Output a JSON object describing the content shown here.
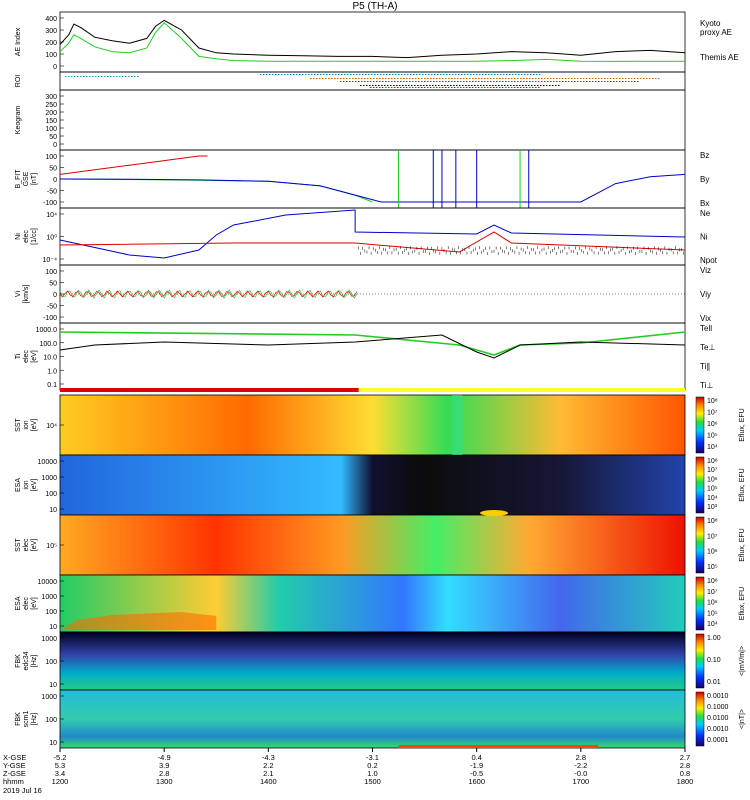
{
  "chart_data": {
    "type": "line",
    "title": "P5 (TH-A)",
    "date_label": "2019 Jul 16",
    "time_axis": {
      "row_labels": [
        "X-GSE",
        "Y-GSE",
        "Z-GSE",
        "hhmm"
      ],
      "ticks": [
        {
          "x": "-5.2",
          "y": "5.3",
          "z": "3.4",
          "t": "1200"
        },
        {
          "x": "-4.9",
          "y": "3.9",
          "z": "2.8",
          "t": "1300"
        },
        {
          "x": "-4.3",
          "y": "2.2",
          "z": "2.1",
          "t": "1400"
        },
        {
          "x": "-3.1",
          "y": "0.2",
          "z": "1.0",
          "t": "1500"
        },
        {
          "x": "0.4",
          "y": "-1.9",
          "z": "-0.5",
          "t": "1600"
        },
        {
          "x": "2.8",
          "y": "-2.2",
          "z": "-0.0",
          "t": "1700"
        },
        {
          "x": "2.7",
          "y": "2.8",
          "z": "0.8",
          "t": "1800"
        }
      ]
    },
    "panels": [
      {
        "name": "AE",
        "ylabel": [
          "AE Index"
        ],
        "yticks": [
          "400",
          "300",
          "200",
          "100",
          "0"
        ],
        "ylim": [
          0,
          400
        ],
        "legend": [
          "Kyoto",
          "proxy AE",
          "Themis AE"
        ],
        "series": [
          {
            "name": "Kyoto proxy AE",
            "color": "#22cc22",
            "t": [
              0,
              5,
              8,
              12,
              20,
              30,
              40,
              50,
              55,
              60,
              70,
              80,
              90,
              100,
              120,
              140,
              160,
              180,
              200,
              220,
              240,
              260,
              280,
              300,
              320,
              340,
              360
            ],
            "values": [
              120,
              190,
              260,
              230,
              160,
              120,
              110,
              150,
              280,
              360,
              230,
              80,
              60,
              45,
              40,
              40,
              40,
              40,
              40,
              40,
              40,
              45,
              55,
              40,
              38,
              40,
              40
            ]
          },
          {
            "name": "Themis AE",
            "color": "#000000",
            "t": [
              0,
              5,
              8,
              12,
              20,
              30,
              40,
              50,
              55,
              60,
              70,
              80,
              90,
              100,
              120,
              140,
              160,
              180,
              200,
              220,
              240,
              260,
              280,
              300,
              320,
              340,
              360
            ],
            "values": [
              180,
              260,
              350,
              320,
              240,
              210,
              190,
              230,
              330,
              380,
              300,
              150,
              110,
              100,
              90,
              85,
              80,
              80,
              70,
              90,
              100,
              120,
              110,
              90,
              120,
              130,
              110
            ]
          }
        ]
      },
      {
        "name": "ROI",
        "ylabel": [
          "ROI"
        ]
      },
      {
        "name": "Kp",
        "ylabel": [
          "Keogram"
        ],
        "yticks": [
          "300",
          "250",
          "200",
          "150",
          "100",
          "50",
          "0"
        ]
      },
      {
        "name": "B_FIT",
        "ylabel": [
          "B_FIT",
          "GSE",
          "[nT]"
        ],
        "yticks": [
          "100",
          "50",
          "0",
          "-50",
          "-100"
        ],
        "legend": [
          "Bz",
          "By",
          "Bx"
        ],
        "series": [
          {
            "name": "Bz",
            "color": "#dd0000",
            "t": [
              0,
              20,
              40,
              60,
              80,
              85
            ],
            "values": [
              20,
              40,
              60,
              80,
              100,
              100
            ]
          },
          {
            "name": "By",
            "color": "#22cc22",
            "t": [
              0,
              40,
              80,
              120,
              150,
              170,
              180
            ],
            "values": [
              0,
              -2,
              -5,
              -10,
              -30,
              -70,
              -100
            ]
          },
          {
            "name": "Bx",
            "color": "#0000cc",
            "t": [
              0,
              40,
              80,
              120,
              150,
              170,
              185,
              300,
              320,
              340,
              360
            ],
            "values": [
              0,
              -1,
              -4,
              -10,
              -30,
              -70,
              -100,
              -100,
              -20,
              10,
              20
            ]
          }
        ]
      },
      {
        "name": "Ni",
        "ylabel": [
          "Ni",
          "elec",
          "[1/cc]"
        ],
        "yticks": [
          "10^4",
          "10^0",
          "10^-4"
        ],
        "legend": [
          "Ne",
          "Ni",
          "Npot"
        ]
      },
      {
        "name": "Vi",
        "ylabel": [
          "Vi",
          "[km/s]"
        ],
        "yticks": [
          "100",
          "50",
          "0",
          "-50",
          "-100"
        ],
        "legend": [
          "Viz",
          "Viy",
          "Vix"
        ]
      },
      {
        "name": "Ti",
        "ylabel": [
          "Ti",
          "elec",
          "[eV]"
        ],
        "yticks": [
          "1000.0",
          "100.0",
          "10.0",
          "1.0",
          "0.1"
        ],
        "legend": [
          "Tell",
          "Te⊥",
          "Ti∥",
          "Ti⊥"
        ]
      },
      {
        "name": "SST ion",
        "ylabel": [
          "SST",
          "ion",
          "[eV]"
        ],
        "yticks": [
          "10^4"
        ],
        "colorbar": [
          "Eflux, EFU",
          "10^8",
          "10^7",
          "10^6",
          "10^5",
          "10^4"
        ]
      },
      {
        "name": "ESA ion",
        "ylabel": [
          "ESA",
          "ion",
          "[eV]"
        ],
        "yticks": [
          "10000",
          "1000",
          "100",
          "10"
        ],
        "colorbar": [
          "Eflux, EFU",
          "10^8",
          "10^7",
          "10^6",
          "10^5",
          "10^4",
          "10^3"
        ]
      },
      {
        "name": "SST elec",
        "ylabel": [
          "SST",
          "elec",
          "[eV]"
        ],
        "yticks": [
          "10^5"
        ],
        "colorbar": [
          "Eflux, EFU",
          "10^8",
          "10^7",
          "10^6",
          "10^5"
        ]
      },
      {
        "name": "ESA elec",
        "ylabel": [
          "ESA",
          "elec",
          "[eV]"
        ],
        "yticks": [
          "10000",
          "1000",
          "100",
          "10"
        ],
        "colorbar": [
          "Eflux, EFU",
          "10^8",
          "10^7",
          "10^6",
          "10^5",
          "10^4"
        ]
      },
      {
        "name": "FBK edc34",
        "ylabel": [
          "FBK",
          "edc34",
          "[Hz]"
        ],
        "yticks": [
          "1000",
          "100",
          "10"
        ],
        "colorbar": [
          "<|mV/m|>",
          "1.00",
          "0.10",
          "0.01"
        ]
      },
      {
        "name": "FBK scm1",
        "ylabel": [
          "FBK",
          "scm1",
          "[Hz]"
        ],
        "yticks": [
          "1000",
          "100",
          "10"
        ],
        "colorbar": [
          "<|nT|>",
          "0.0010",
          "0.1000",
          "0.0100",
          "0.0010",
          "0.0001"
        ]
      }
    ]
  }
}
